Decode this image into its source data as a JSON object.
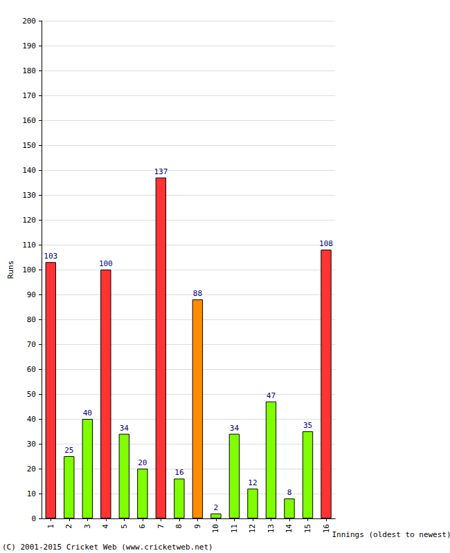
{
  "chart_data": {
    "type": "bar",
    "categories": [
      "1",
      "2",
      "3",
      "4",
      "5",
      "6",
      "7",
      "8",
      "9",
      "10",
      "11",
      "12",
      "13",
      "14",
      "15",
      "16"
    ],
    "values": [
      103,
      25,
      40,
      100,
      34,
      20,
      137,
      16,
      88,
      2,
      34,
      12,
      47,
      8,
      35,
      108
    ],
    "colors": [
      "#ff3333",
      "#80ff00",
      "#80ff00",
      "#ff3333",
      "#80ff00",
      "#80ff00",
      "#ff3333",
      "#80ff00",
      "#ff8c00",
      "#80ff00",
      "#80ff00",
      "#80ff00",
      "#80ff00",
      "#80ff00",
      "#80ff00",
      "#ff3333"
    ],
    "y_label": "Runs",
    "x_label": "Innings (oldest to newest)",
    "annotations": [
      "(C) 2001-2015 Cricket Web (www.cricketweb.net)"
    ],
    "ylim": [
      0,
      200
    ],
    "yticks": [
      0,
      10,
      20,
      30,
      40,
      50,
      60,
      70,
      80,
      90,
      100,
      110,
      120,
      130,
      140,
      150,
      160,
      170,
      180,
      190,
      200
    ],
    "grid": true,
    "data_labels": true
  }
}
